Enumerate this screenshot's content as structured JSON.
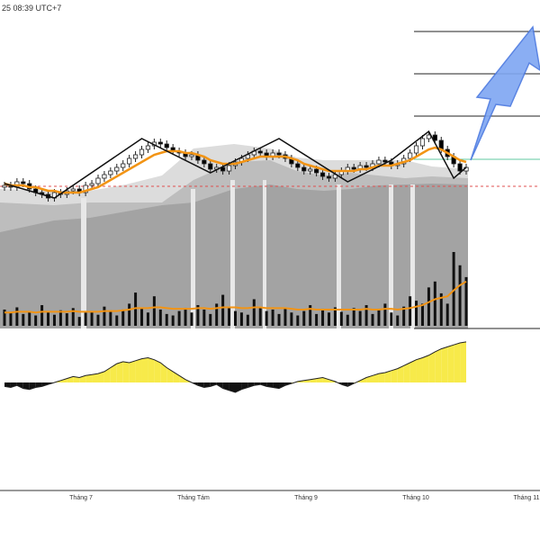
{
  "header": {
    "timestamp": "25 08:39 UTC+7"
  },
  "colors": {
    "candle_up": "#ffffff",
    "candle_down": "#000000",
    "candle_border": "#222222",
    "ma": "#f29415",
    "zigzag": "#111111",
    "target_line": "#111111",
    "green_level": "#5fc8a0",
    "red_level": "#e05050",
    "arrow_fill": "#7ea6f2",
    "arrow_stroke": "#4a78e0",
    "volume_bar": "#111111",
    "histogram_pos": "#f7ea4a",
    "histogram_neg": "#111111",
    "zone_light": "#d8d8d8",
    "zone_mid": "#b8b8b8",
    "zone_dark": "#9a9a9a"
  },
  "chart_data": {
    "type": "candlestick",
    "xaxis": {
      "labels": [
        "Tháng 7",
        "Tháng Tám",
        "Tháng 9",
        "Tháng 10",
        "Tháng 11"
      ]
    },
    "price": {
      "ylim": [
        0,
        100
      ],
      "close": [
        62,
        61,
        64,
        63,
        60,
        58,
        57,
        55,
        58,
        57,
        59,
        60,
        58,
        62,
        63,
        66,
        68,
        70,
        72,
        74,
        77,
        79,
        82,
        84,
        86,
        85,
        83,
        81,
        80,
        78,
        79,
        76,
        74,
        71,
        72,
        70,
        73,
        75,
        77,
        79,
        81,
        80,
        78,
        80,
        79,
        77,
        74,
        72,
        70,
        71,
        69,
        67,
        66,
        68,
        70,
        72,
        71,
        73,
        72,
        74,
        76,
        75,
        73,
        74,
        77,
        80,
        84,
        88,
        90,
        87,
        82,
        78,
        74,
        70,
        72
      ],
      "ma": [
        63,
        62,
        62,
        62,
        61,
        61,
        60,
        59,
        59,
        58,
        58,
        58,
        58,
        59,
        60,
        61,
        63,
        65,
        67,
        69,
        71,
        73,
        75,
        77,
        79,
        80,
        81,
        81,
        81,
        80,
        80,
        79,
        78,
        76,
        75,
        74,
        74,
        74,
        75,
        76,
        77,
        78,
        78,
        78,
        78,
        78,
        77,
        76,
        74,
        73,
        72,
        71,
        70,
        70,
        70,
        70,
        70,
        71,
        71,
        72,
        73,
        73,
        73,
        74,
        75,
        76,
        78,
        80,
        82,
        83,
        82,
        80,
        78,
        76,
        75
      ],
      "zigzag": [
        [
          0,
          63
        ],
        [
          8,
          55
        ],
        [
          22,
          88
        ],
        [
          33,
          69
        ],
        [
          44,
          88
        ],
        [
          55,
          64
        ],
        [
          62,
          76
        ],
        [
          68,
          92
        ],
        [
          72,
          66
        ],
        [
          74,
          72
        ]
      ]
    },
    "volume": {
      "values": [
        22,
        18,
        25,
        16,
        20,
        14,
        28,
        19,
        15,
        21,
        17,
        24,
        12,
        18,
        20,
        15,
        26,
        19,
        14,
        22,
        30,
        45,
        25,
        18,
        40,
        22,
        16,
        14,
        20,
        24,
        18,
        28,
        22,
        16,
        30,
        42,
        26,
        20,
        18,
        15,
        36,
        24,
        20,
        22,
        16,
        25,
        18,
        14,
        20,
        28,
        16,
        22,
        18,
        25,
        19,
        15,
        24,
        20,
        28,
        16,
        22,
        30,
        18,
        14,
        26,
        40,
        34,
        30,
        52,
        60,
        44,
        30,
        100,
        82,
        66
      ],
      "ma": [
        18,
        18,
        19,
        19,
        19,
        18,
        19,
        19,
        19,
        19,
        19,
        20,
        19,
        19,
        19,
        19,
        20,
        20,
        20,
        21,
        22,
        24,
        24,
        24,
        25,
        25,
        24,
        23,
        23,
        23,
        23,
        24,
        24,
        23,
        24,
        25,
        25,
        25,
        24,
        24,
        25,
        25,
        24,
        24,
        24,
        24,
        23,
        22,
        22,
        23,
        22,
        22,
        22,
        22,
        22,
        22,
        22,
        22,
        23,
        22,
        22,
        23,
        23,
        22,
        23,
        24,
        26,
        28,
        32,
        36,
        38,
        40,
        48,
        55,
        60
      ]
    },
    "oscillator": {
      "values": [
        -8,
        -10,
        -6,
        -12,
        -14,
        -10,
        -8,
        -4,
        0,
        4,
        8,
        12,
        10,
        14,
        16,
        18,
        22,
        30,
        38,
        42,
        40,
        44,
        48,
        50,
        46,
        40,
        30,
        22,
        14,
        6,
        0,
        -6,
        -10,
        -8,
        -4,
        -12,
        -16,
        -20,
        -14,
        -10,
        -6,
        -4,
        -8,
        -10,
        -12,
        -6,
        -2,
        2,
        4,
        6,
        8,
        10,
        6,
        2,
        -4,
        -8,
        -2,
        4,
        10,
        14,
        18,
        20,
        24,
        28,
        34,
        40,
        46,
        50,
        55,
        62,
        68,
        72,
        76,
        80,
        82
      ]
    }
  }
}
